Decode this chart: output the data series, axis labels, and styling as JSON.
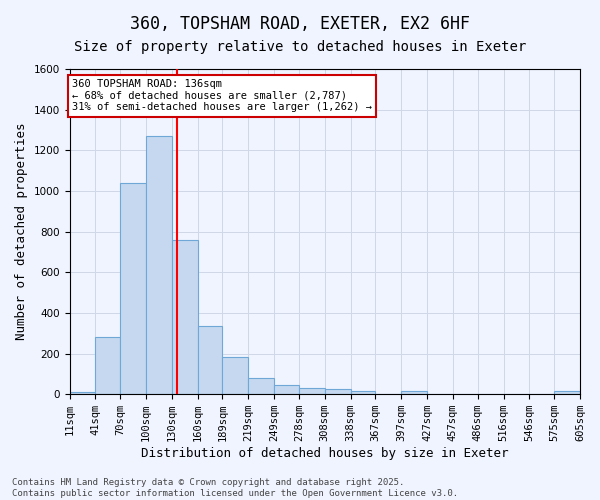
{
  "title1": "360, TOPSHAM ROAD, EXETER, EX2 6HF",
  "title2": "Size of property relative to detached houses in Exeter",
  "xlabel": "Distribution of detached houses by size in Exeter",
  "ylabel": "Number of detached properties",
  "bin_edges": [
    11,
    41,
    70,
    100,
    130,
    160,
    189,
    219,
    249,
    278,
    308,
    338,
    367,
    397,
    427,
    457,
    486,
    516,
    546,
    575,
    605
  ],
  "bar_heights": [
    10,
    280,
    1040,
    1270,
    760,
    335,
    185,
    80,
    45,
    30,
    25,
    15,
    0,
    15,
    0,
    0,
    0,
    0,
    0,
    15
  ],
  "bar_color": "#c5d8f0",
  "bar_edge_color": "#6fa8d6",
  "grid_color": "#d0d8e8",
  "background_color": "#f0f4ff",
  "red_line_x": 136,
  "annotation_text": "360 TOPSHAM ROAD: 136sqm\n← 68% of detached houses are smaller (2,787)\n31% of semi-detached houses are larger (1,262) →",
  "annotation_box_color": "#ffffff",
  "annotation_border_color": "#cc0000",
  "ylim": [
    0,
    1600
  ],
  "yticks": [
    0,
    200,
    400,
    600,
    800,
    1000,
    1200,
    1400,
    1600
  ],
  "tick_labels": [
    "11sqm",
    "41sqm",
    "70sqm",
    "100sqm",
    "130sqm",
    "160sqm",
    "189sqm",
    "219sqm",
    "249sqm",
    "278sqm",
    "308sqm",
    "338sqm",
    "367sqm",
    "397sqm",
    "427sqm",
    "457sqm",
    "486sqm",
    "516sqm",
    "546sqm",
    "575sqm",
    "605sqm"
  ],
  "footer_text": "Contains HM Land Registry data © Crown copyright and database right 2025.\nContains public sector information licensed under the Open Government Licence v3.0.",
  "title1_fontsize": 12,
  "title2_fontsize": 10,
  "xlabel_fontsize": 9,
  "ylabel_fontsize": 9,
  "tick_fontsize": 7.5,
  "footer_fontsize": 6.5
}
